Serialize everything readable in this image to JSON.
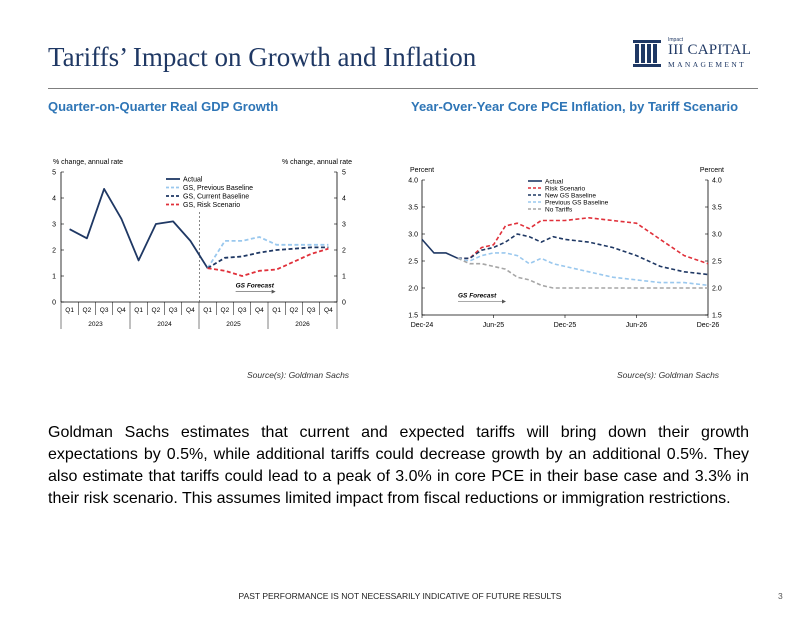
{
  "title": "Tariffs’ Impact on Growth and Inflation",
  "logo": {
    "tag": "Impact",
    "name": "III CAPITAL",
    "sub": "MANAGEMENT"
  },
  "colors": {
    "navy": "#1f3864",
    "accent": "#2e75b6",
    "risk": "#e0303a",
    "light": "#9ac8ee",
    "gray": "#a6a6a6"
  },
  "left_subtitle": "Quarter-on-Quarter Real GDP Growth",
  "right_subtitle": "Year-Over-Year Core PCE Inflation, by Tariff Scenario",
  "left_source": "Source(s): Goldman Sachs",
  "right_source": "Source(s): Goldman Sachs",
  "body": "Goldman Sachs estimates that current and expected tariffs will bring down their growth expectations by 0.5%, while additional tariffs could decrease growth by an additional 0.5%. They also estimate that tariffs could lead to a peak of 3.0% in core PCE in their base case and 3.3% in their risk scenario. This assumes limited impact from fiscal reductions or immigration restrictions.",
  "footer": "PAST PERFORMANCE IS NOT NECESSARILY INDICATIVE OF FUTURE RESULTS",
  "page_number": "3",
  "chart_data": [
    {
      "type": "line",
      "y_unit_left": "% change, annual rate",
      "y_unit_right": "% change, annual rate",
      "ylim": [
        0,
        5
      ],
      "yticks": [
        0,
        1,
        2,
        3,
        4,
        5
      ],
      "grid": false,
      "legend": "top-left",
      "quarters": [
        "Q1",
        "Q2",
        "Q3",
        "Q4",
        "Q1",
        "Q2",
        "Q3",
        "Q4",
        "Q1",
        "Q2",
        "Q3",
        "Q4",
        "Q1",
        "Q2",
        "Q3",
        "Q4"
      ],
      "years": [
        "2023",
        "2024",
        "2025",
        "2026"
      ],
      "annotation": "GS Forecast",
      "series": [
        {
          "name": "Actual",
          "color": "#1f3864",
          "dash": "solid",
          "start": 0,
          "values": [
            2.8,
            2.45,
            4.35,
            3.2,
            1.6,
            3.0,
            3.1,
            2.35,
            1.3
          ]
        },
        {
          "name": "GS, Previous Baseline",
          "color": "#9ac8ee",
          "dash": "dashed",
          "start": 8,
          "values": [
            1.3,
            2.35,
            2.35,
            2.5,
            2.2,
            2.2,
            2.2,
            2.2
          ]
        },
        {
          "name": "GS, Current Baseline",
          "color": "#1f3864",
          "dash": "dashed",
          "start": 8,
          "values": [
            1.3,
            1.7,
            1.75,
            1.9,
            2.0,
            2.05,
            2.1,
            2.1
          ]
        },
        {
          "name": "GS, Risk Scenario",
          "color": "#e0303a",
          "dash": "dashed",
          "start": 8,
          "values": [
            1.3,
            1.2,
            1.0,
            1.2,
            1.25,
            1.55,
            1.85,
            2.05
          ]
        }
      ]
    },
    {
      "type": "line",
      "y_unit_left": "Percent",
      "y_unit_right": "Percent",
      "ylim": [
        1.5,
        4.0
      ],
      "yticks": [
        1.5,
        2.0,
        2.5,
        3.0,
        3.5,
        4.0
      ],
      "grid": false,
      "legend": "top-center",
      "x_labels": [
        "Dec-24",
        "Jun-25",
        "Dec-25",
        "Jun-26",
        "Dec-26"
      ],
      "xlim": [
        "Dec-24",
        "Dec-26"
      ],
      "annotation": "GS Forecast",
      "series": [
        {
          "name": "Actual",
          "color": "#1f3864",
          "dash": "solid",
          "x": [
            "Dec-24",
            "Jan-25",
            "Feb-25",
            "Mar-25"
          ],
          "y": [
            2.9,
            2.65,
            2.65,
            2.55
          ]
        },
        {
          "name": "Risk Scenario",
          "color": "#e0303a",
          "dash": "dashed",
          "x": [
            "Mar-25",
            "Apr-25",
            "May-25",
            "Jun-25",
            "Jul-25",
            "Aug-25",
            "Sep-25",
            "Oct-25",
            "Nov-25",
            "Dec-25",
            "Feb-26",
            "Apr-26",
            "Jun-26",
            "Aug-26",
            "Oct-26",
            "Dec-26"
          ],
          "y": [
            2.55,
            2.55,
            2.75,
            2.8,
            3.15,
            3.2,
            3.1,
            3.25,
            3.25,
            3.25,
            3.3,
            3.25,
            3.2,
            2.9,
            2.6,
            2.45
          ]
        },
        {
          "name": "New GS Baseline",
          "color": "#1f3864",
          "dash": "dashed",
          "x": [
            "Mar-25",
            "Apr-25",
            "May-25",
            "Jun-25",
            "Jul-25",
            "Aug-25",
            "Sep-25",
            "Oct-25",
            "Nov-25",
            "Dec-25",
            "Feb-26",
            "Apr-26",
            "Jun-26",
            "Aug-26",
            "Oct-26",
            "Dec-26"
          ],
          "y": [
            2.55,
            2.55,
            2.7,
            2.75,
            2.85,
            3.0,
            2.95,
            2.85,
            2.95,
            2.9,
            2.85,
            2.75,
            2.6,
            2.4,
            2.3,
            2.25
          ]
        },
        {
          "name": "Previous GS Baseline",
          "color": "#9ac8ee",
          "dash": "dashed",
          "x": [
            "Mar-25",
            "Apr-25",
            "May-25",
            "Jun-25",
            "Jul-25",
            "Aug-25",
            "Sep-25",
            "Oct-25",
            "Nov-25",
            "Dec-25",
            "Feb-26",
            "Apr-26",
            "Jun-26",
            "Aug-26",
            "Oct-26",
            "Dec-26"
          ],
          "y": [
            2.55,
            2.5,
            2.6,
            2.65,
            2.65,
            2.6,
            2.45,
            2.55,
            2.45,
            2.4,
            2.3,
            2.2,
            2.15,
            2.1,
            2.1,
            2.05
          ]
        },
        {
          "name": "No Tariffs",
          "color": "#a6a6a6",
          "dash": "dashed",
          "x": [
            "Mar-25",
            "Apr-25",
            "May-25",
            "Jun-25",
            "Jul-25",
            "Aug-25",
            "Sep-25",
            "Oct-25",
            "Nov-25",
            "Dec-25",
            "Feb-26",
            "Apr-26",
            "Jun-26",
            "Aug-26",
            "Oct-26",
            "Dec-26"
          ],
          "y": [
            2.55,
            2.45,
            2.45,
            2.4,
            2.35,
            2.2,
            2.15,
            2.05,
            2.0,
            2.0,
            2.0,
            2.0,
            2.0,
            2.0,
            2.0,
            2.0
          ]
        }
      ]
    }
  ]
}
